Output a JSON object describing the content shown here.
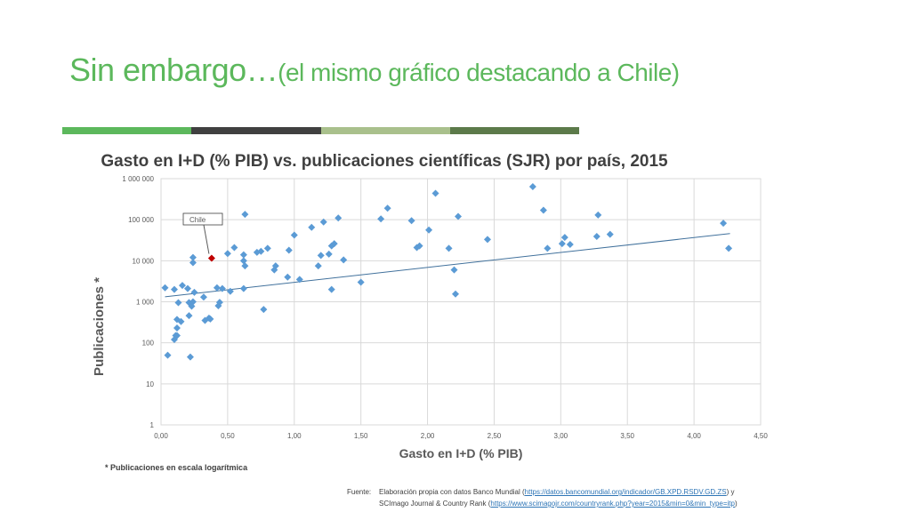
{
  "slide": {
    "title_main": "Sin embargo…",
    "title_sub": "(el mismo gráfico destacando a Chile)",
    "bar_colors": [
      "#5cb85c",
      "#404040",
      "#a9c08c",
      "#5c7a4a"
    ]
  },
  "chart_data": {
    "type": "scatter",
    "title": "Gasto en I+D (% PIB) vs. publicaciones científicas (SJR) por país, 2015",
    "xlabel": "Gasto en I+D (% PIB)",
    "ylabel": "Publicaciones *",
    "xlim": [
      0,
      4.5
    ],
    "ylim": [
      1,
      1000000
    ],
    "y_scale": "log",
    "x_ticks": [
      "0,00",
      "0,50",
      "1,00",
      "1,50",
      "2,00",
      "2,50",
      "3,00",
      "3,50",
      "4,00",
      "4,50"
    ],
    "y_ticks": [
      "1",
      "10",
      "100",
      "1 000",
      "10 000",
      "100 000",
      "1 000 000"
    ],
    "grid": true,
    "point_color": "#5b9bd5",
    "highlight_color": "#c00000",
    "trendline": {
      "x": [
        0.03,
        4.27
      ],
      "y": [
        1320,
        46000
      ],
      "color": "#41719c"
    },
    "annotation": {
      "text": "Chile",
      "x": 0.38,
      "y": 11500
    },
    "series": [
      {
        "points": [
          [
            0.03,
            2200
          ],
          [
            0.05,
            50
          ],
          [
            0.1,
            2000
          ],
          [
            0.1,
            120
          ],
          [
            0.11,
            150
          ],
          [
            0.12,
            370
          ],
          [
            0.12,
            230
          ],
          [
            0.12,
            150
          ],
          [
            0.13,
            950
          ],
          [
            0.15,
            330
          ],
          [
            0.16,
            2500
          ],
          [
            0.2,
            2100
          ],
          [
            0.21,
            960
          ],
          [
            0.21,
            460
          ],
          [
            0.22,
            45
          ],
          [
            0.23,
            780
          ],
          [
            0.24,
            1000
          ],
          [
            0.24,
            9000
          ],
          [
            0.24,
            12000
          ],
          [
            0.25,
            1700
          ],
          [
            0.32,
            1300
          ],
          [
            0.33,
            350
          ],
          [
            0.36,
            400
          ],
          [
            0.37,
            380
          ],
          [
            0.42,
            2200
          ],
          [
            0.43,
            800
          ],
          [
            0.44,
            970
          ],
          [
            0.46,
            2100
          ],
          [
            0.5,
            15000
          ],
          [
            0.52,
            1800
          ],
          [
            0.55,
            21000
          ],
          [
            0.62,
            2100
          ],
          [
            0.62,
            10000
          ],
          [
            0.62,
            14000
          ],
          [
            0.63,
            135000
          ],
          [
            0.63,
            7500
          ],
          [
            0.72,
            16000
          ],
          [
            0.75,
            17000
          ],
          [
            0.77,
            650
          ],
          [
            0.8,
            20000
          ],
          [
            0.85,
            6000
          ],
          [
            0.86,
            7500
          ],
          [
            0.95,
            4000
          ],
          [
            0.96,
            18000
          ],
          [
            1.0,
            42000
          ],
          [
            1.04,
            3500
          ],
          [
            1.13,
            65000
          ],
          [
            1.18,
            7500
          ],
          [
            1.2,
            13500
          ],
          [
            1.22,
            88000
          ],
          [
            1.26,
            14500
          ],
          [
            1.28,
            23000
          ],
          [
            1.28,
            2000
          ],
          [
            1.3,
            26000
          ],
          [
            1.33,
            110000
          ],
          [
            1.37,
            10500
          ],
          [
            1.5,
            3000
          ],
          [
            1.65,
            105000
          ],
          [
            1.7,
            190000
          ],
          [
            1.88,
            95000
          ],
          [
            1.92,
            21000
          ],
          [
            1.94,
            23000
          ],
          [
            2.01,
            56000
          ],
          [
            2.06,
            440000
          ],
          [
            2.16,
            20000
          ],
          [
            2.2,
            6000
          ],
          [
            2.21,
            1550
          ],
          [
            2.23,
            120000
          ],
          [
            2.45,
            33000
          ],
          [
            2.79,
            640000
          ],
          [
            2.87,
            170000
          ],
          [
            2.9,
            20000
          ],
          [
            3.01,
            26000
          ],
          [
            3.03,
            37000
          ],
          [
            3.07,
            25000
          ],
          [
            3.28,
            130000
          ],
          [
            3.27,
            39000
          ],
          [
            3.37,
            44000
          ],
          [
            4.22,
            82000
          ],
          [
            4.26,
            20000
          ]
        ]
      },
      {
        "name": "Chile",
        "points": [
          [
            0.38,
            11500
          ]
        ]
      }
    ]
  },
  "footnote": "* Publicaciones en escala logarítmica",
  "source": {
    "label": "Fuente:",
    "line1_text": "Elaboración propia con datos Banco Mundial (",
    "line1_link": "https://datos.bancomundial.org/indicador/GB.XPD.RSDV.GD.ZS",
    "line1_end": ") y",
    "line2_text": "SCImago Journal & Country Rank  (",
    "line2_link": "https://www.scimagojr.com/countryrank.php?year=2015&min=0&min_type=itp",
    "line2_end": ")"
  }
}
